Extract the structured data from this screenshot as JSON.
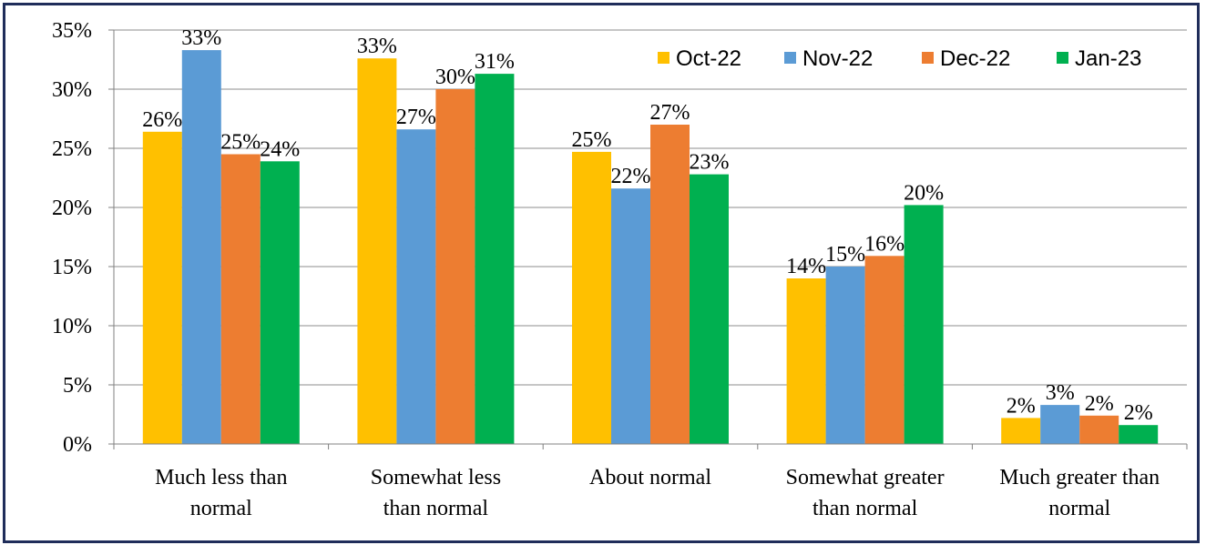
{
  "chart_data": {
    "type": "bar",
    "categories": [
      [
        "Much less than",
        "normal"
      ],
      [
        "Somewhat less",
        "than normal"
      ],
      [
        "About normal"
      ],
      [
        "Somewhat greater",
        "than normal"
      ],
      [
        "Much greater than",
        "normal"
      ]
    ],
    "series": [
      {
        "name": "Oct-22",
        "color": "#FFC000",
        "values": [
          26.4,
          32.6,
          24.7,
          14.0,
          2.2
        ],
        "labels": [
          "26%",
          "33%",
          "25%",
          "14%",
          "2%"
        ]
      },
      {
        "name": "Nov-22",
        "color": "#5B9BD5",
        "values": [
          33.3,
          26.6,
          21.6,
          15.0,
          3.3
        ],
        "labels": [
          "33%",
          "27%",
          "22%",
          "15%",
          "3%"
        ]
      },
      {
        "name": "Dec-22",
        "color": "#ED7D31",
        "values": [
          24.5,
          30.0,
          27.0,
          15.9,
          2.4
        ],
        "labels": [
          "25%",
          "30%",
          "27%",
          "16%",
          "2%"
        ]
      },
      {
        "name": "Jan-23",
        "color": "#00B050",
        "values": [
          23.9,
          31.3,
          22.8,
          20.2,
          1.6
        ],
        "labels": [
          "24%",
          "31%",
          "23%",
          "20%",
          "2%"
        ]
      }
    ],
    "yticks": [
      "0%",
      "5%",
      "10%",
      "15%",
      "20%",
      "25%",
      "30%",
      "35%"
    ],
    "ylim": [
      0,
      35
    ],
    "title": "",
    "xlabel": "",
    "ylabel": "",
    "legend_position": "top-right",
    "grid": true
  }
}
